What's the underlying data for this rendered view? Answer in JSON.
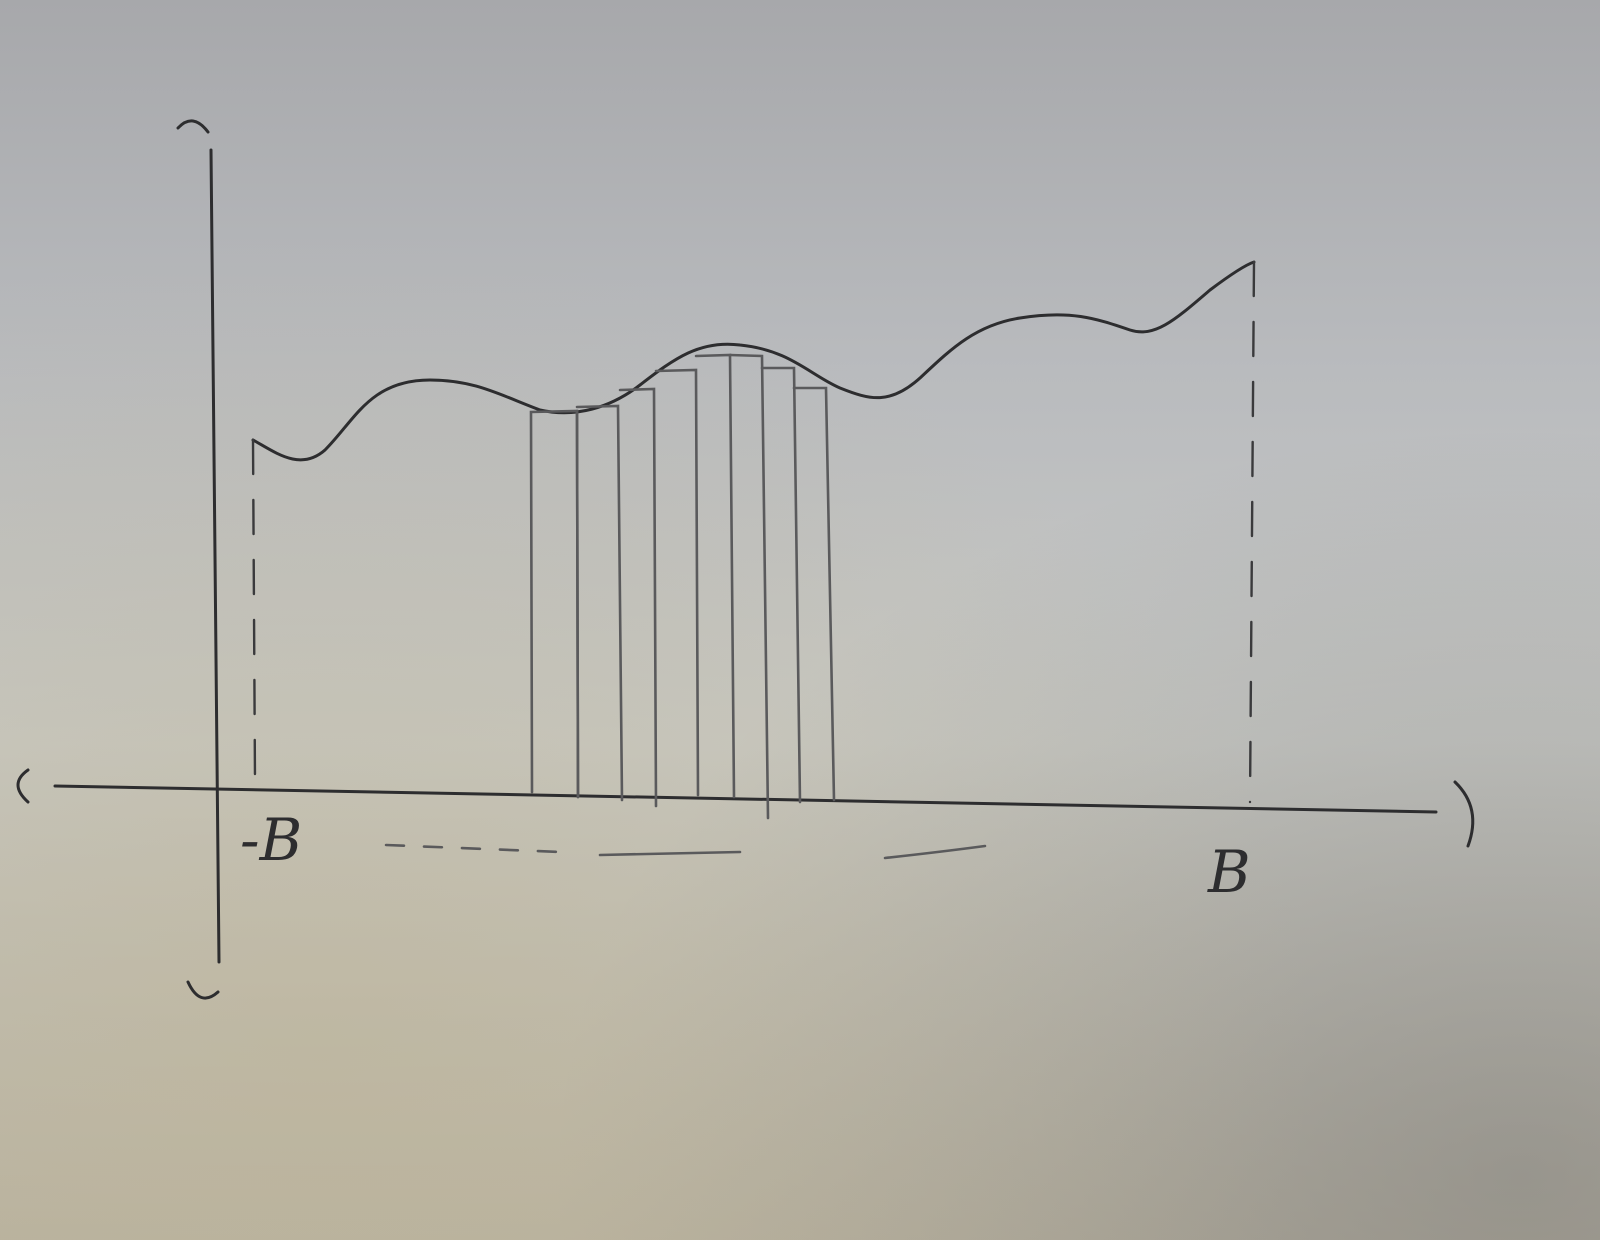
{
  "labels": {
    "left_bound": "-B",
    "right_bound": "B"
  },
  "colors": {
    "ink": "#2d2d2f",
    "pencil": "#5a5a5c"
  }
}
